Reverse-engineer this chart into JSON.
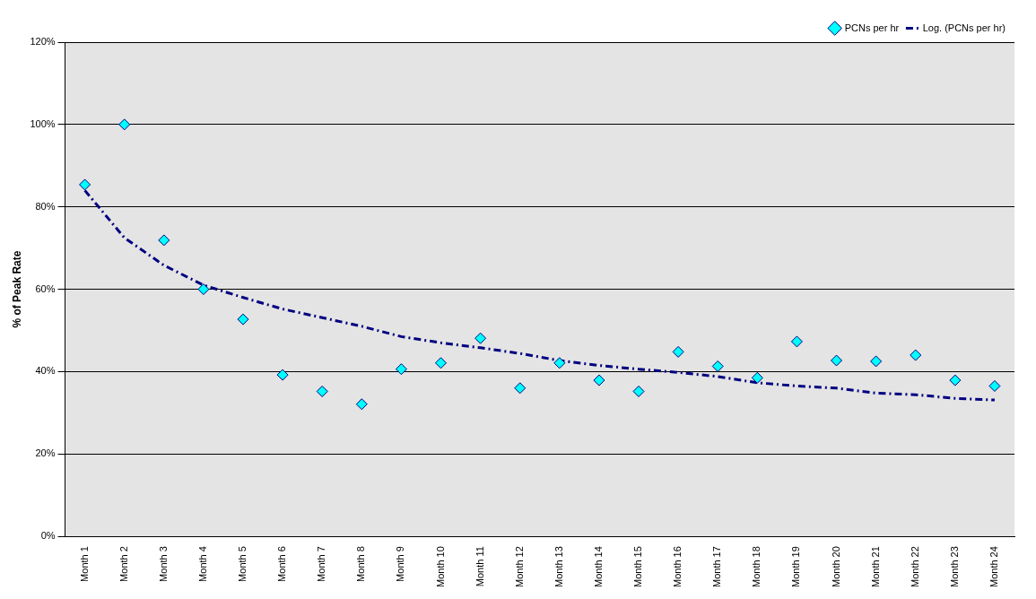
{
  "chart_data": {
    "type": "scatter",
    "ylabel": "% of Peak Rate",
    "categories": [
      "Month 1",
      "Month 2",
      "Month 3",
      "Month 4",
      "Month 5",
      "Month 6",
      "Month 7",
      "Month 8",
      "Month 9",
      "Month 10",
      "Month 11",
      "Month 12",
      "Month 13",
      "Month 14",
      "Month 15",
      "Month 16",
      "Month 17",
      "Month 18",
      "Month 19",
      "Month 20",
      "Month 21",
      "Month 22",
      "Month 23",
      "Month 24"
    ],
    "series": [
      {
        "name": "PCNs per hr",
        "color": "#00ffff",
        "marker": "diamond",
        "values": [
          85.4,
          100,
          71.9,
          60,
          52.7,
          39.2,
          35.2,
          32.1,
          40.6,
          42.1,
          48.1,
          36,
          42.1,
          37.9,
          35.2,
          44.8,
          41.3,
          38.5,
          47.3,
          42.7,
          42.5,
          44,
          37.9,
          36.5
        ]
      },
      {
        "name": "Log. (PCNs per hr)",
        "type": "line",
        "color": "#000080",
        "marker": "none",
        "line_style": "dashed",
        "values": [
          84,
          72.5,
          65.8,
          61,
          58,
          55.2,
          53.1,
          51,
          48.5,
          47,
          45.8,
          44.4,
          42.7,
          41.5,
          40.6,
          39.8,
          38.8,
          37.3,
          36.5,
          36,
          34.8,
          34.4,
          33.5,
          33.1
        ]
      }
    ],
    "ylim": [
      0,
      120
    ],
    "yticks": [
      {
        "value": 0,
        "label": "0%"
      },
      {
        "value": 20,
        "label": "20%"
      },
      {
        "value": 40,
        "label": "40%"
      },
      {
        "value": 60,
        "label": "60%"
      },
      {
        "value": 80,
        "label": "80%"
      },
      {
        "value": 100,
        "label": "100%"
      },
      {
        "value": 120,
        "label": "120%"
      }
    ],
    "grid": "y",
    "legend": "top right"
  }
}
